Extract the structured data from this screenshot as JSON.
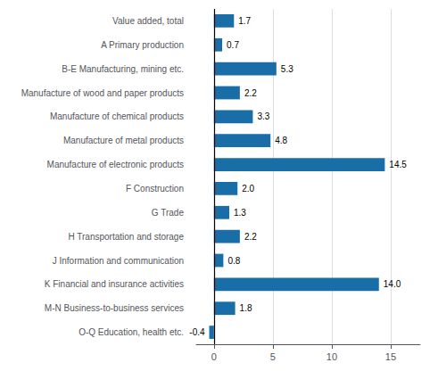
{
  "chart_data": {
    "type": "bar",
    "orientation": "horizontal",
    "categories": [
      "Value added, total",
      "A Primary production",
      "B-E Manufacturing, mining etc.",
      "Manufacture of wood and paper products",
      "Manufacture of chemical products",
      "Manufacture of metal products",
      "Manufacture of electronic products",
      "F Construction",
      "G Trade",
      "H Transportation and storage",
      "J Information and communication",
      "K Financial and insurance activities",
      "M-N Business-to-business services",
      "O-Q Education, health etc."
    ],
    "values": [
      1.7,
      0.7,
      5.3,
      2.2,
      3.3,
      4.8,
      14.5,
      2.0,
      1.3,
      2.2,
      0.8,
      14.0,
      1.8,
      -0.4
    ],
    "value_labels": [
      "1.7",
      "0.7",
      "5.3",
      "2.2",
      "3.3",
      "4.8",
      "14.5",
      "2.0",
      "1.3",
      "2.2",
      "0.8",
      "14.0",
      "1.8",
      "-0.4"
    ],
    "color": "#1a6ea8",
    "xlim": [
      -1.5,
      17.5
    ],
    "xticks": [
      0,
      5,
      10,
      15
    ],
    "grid": true,
    "data_labels": true
  }
}
